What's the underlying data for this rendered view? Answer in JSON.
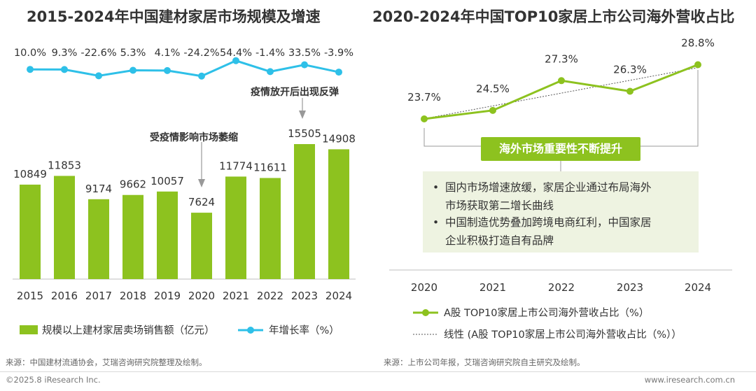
{
  "left_chart": {
    "title": "2015-2024年中国建材家居市场规模及增速",
    "annotation_covid": "受疫情影响市场萎缩",
    "annotation_rebound": "疫情放开后出现反弹",
    "legend_bar": "规模以上建材家居卖场销售额（亿元）",
    "legend_line": "年增长率（%）",
    "source": "来源：中国建材流通协会，艾瑞咨询研究院整理及绘制。"
  },
  "right_chart": {
    "title": "2020-2024年中国TOP10家居上市公司海外营收占比",
    "callout": "海外市场重要性不断提升",
    "bullets": [
      {
        "dot": "•",
        "line1": "国内市场增速放缓，家居企业通过布局海外",
        "line2": "市场获取第二增长曲线"
      },
      {
        "dot": "•",
        "line1": "中国制造优势叠加跨境电商红利，中国家居",
        "line2": "企业积极打造自有品牌"
      }
    ],
    "legend_line": "A股 TOP10家居上市公司海外营收占比（%）",
    "legend_trend": "线性 (A股 TOP10家居上市公司海外营收占比（%））",
    "source": "来源：上市公司年报，艾瑞咨询研究院自主研究及绘制。"
  },
  "footer": {
    "copyright": "©2025.8 iResearch Inc.",
    "website": "www.iresearch.com.cn"
  },
  "colors": {
    "green": "#8dc21f",
    "cyan": "#2ec0e8",
    "text": "#333333"
  },
  "chart_data": [
    {
      "type": "bar",
      "title": "2015-2024年中国建材家居市场规模及增速",
      "categories": [
        "2015",
        "2016",
        "2017",
        "2018",
        "2019",
        "2020",
        "2021",
        "2022",
        "2023",
        "2024"
      ],
      "series": [
        {
          "name": "规模以上建材家居卖场销售额（亿元）",
          "type": "bar",
          "values": [
            10849,
            11853,
            9174,
            9662,
            10057,
            7624,
            11774,
            11611,
            15505,
            14908
          ],
          "labels": [
            "10849",
            "11853",
            "9174",
            "9662",
            "10057",
            "7624",
            "11774",
            "11611",
            "15505",
            "14908"
          ]
        },
        {
          "name": "年增长率（%）",
          "type": "line",
          "values": [
            10.0,
            9.3,
            -22.6,
            5.3,
            4.1,
            -24.2,
            54.4,
            -1.4,
            33.5,
            -3.9
          ],
          "labels": [
            "10.0%",
            "9.3%",
            "-22.6%",
            "5.3%",
            "4.1%",
            "-24.2%",
            "54.4%",
            "-1.4%",
            "33.5%",
            "-3.9%"
          ]
        }
      ],
      "ylim": [
        0,
        18000
      ]
    },
    {
      "type": "line",
      "title": "2020-2024年中国TOP10家居上市公司海外营收占比",
      "categories": [
        "2020",
        "2021",
        "2022",
        "2023",
        "2024"
      ],
      "series": [
        {
          "name": "A股 TOP10家居上市公司海外营收占比（%）",
          "values": [
            23.7,
            24.5,
            27.3,
            26.3,
            28.8
          ],
          "labels": [
            "23.7%",
            "24.5%",
            "27.3%",
            "26.3%",
            "28.8%"
          ]
        },
        {
          "name": "线性 (A股 TOP10家居上市公司海外营收占比（%））",
          "type": "trendline"
        }
      ],
      "ylim": [
        20,
        30
      ]
    }
  ]
}
